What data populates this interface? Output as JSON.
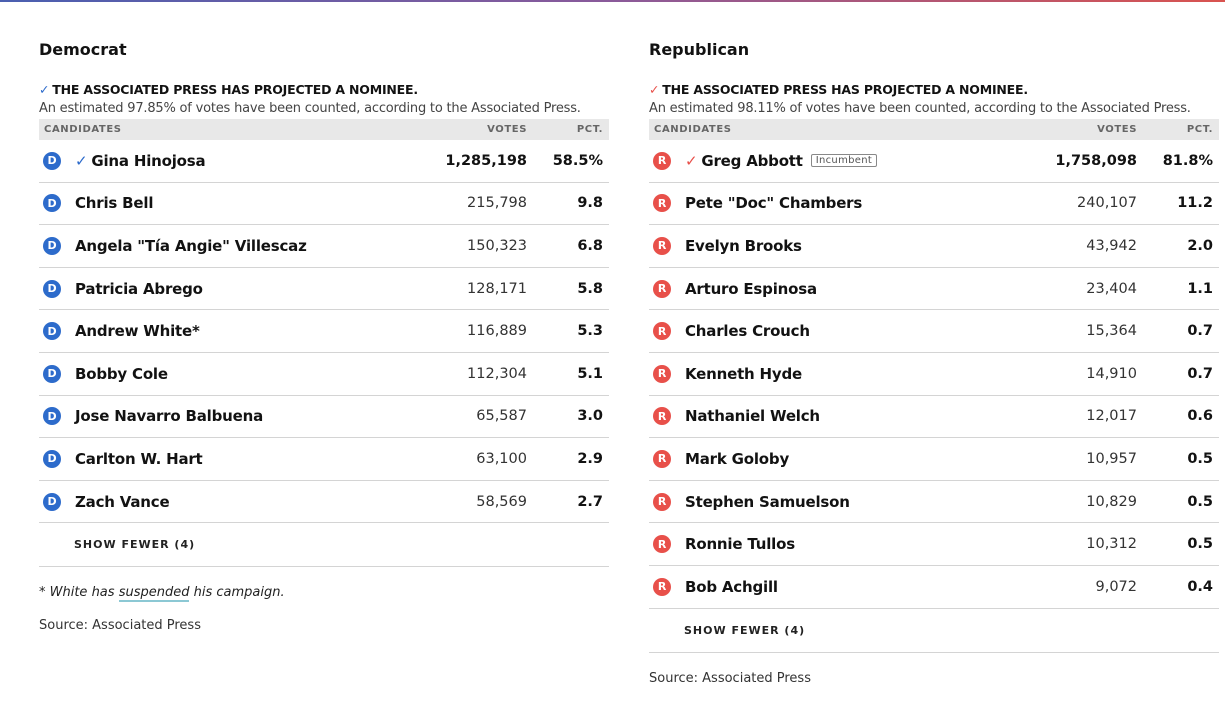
{
  "colors": {
    "democrat": "#2d6bcb",
    "republican": "#e8504a"
  },
  "democrat": {
    "party": "Democrat",
    "check": "✓",
    "projection": "THE ASSOCIATED PRESS HAS PROJECTED A NOMINEE.",
    "estimate": "An estimated 97.85% of votes have been counted, according to the Associated Press.",
    "headers": {
      "candidates": "CANDIDATES",
      "votes": "VOTES",
      "pct": "PCT."
    },
    "badge": "D",
    "rows": [
      {
        "name": "Gina Hinojosa",
        "votes": "1,285,198",
        "pct": "58.5%",
        "winner": true
      },
      {
        "name": "Chris Bell",
        "votes": "215,798",
        "pct": "9.8"
      },
      {
        "name": "Angela \"Tía Angie\" Villescaz",
        "votes": "150,323",
        "pct": "6.8"
      },
      {
        "name": "Patricia Abrego",
        "votes": "128,171",
        "pct": "5.8"
      },
      {
        "name": "Andrew White*",
        "votes": "116,889",
        "pct": "5.3"
      },
      {
        "name": "Bobby Cole",
        "votes": "112,304",
        "pct": "5.1"
      },
      {
        "name": "Jose Navarro Balbuena",
        "votes": "65,587",
        "pct": "3.0"
      },
      {
        "name": "Carlton W. Hart",
        "votes": "63,100",
        "pct": "2.9"
      },
      {
        "name": "Zach Vance",
        "votes": "58,569",
        "pct": "2.7"
      }
    ],
    "show_fewer": "SHOW FEWER (4)",
    "note": {
      "pre": "* White has ",
      "link": "suspended",
      "post": " his campaign."
    },
    "source": "Source: Associated Press"
  },
  "republican": {
    "party": "Republican",
    "check": "✓",
    "projection": "THE ASSOCIATED PRESS HAS PROJECTED A NOMINEE.",
    "estimate": "An estimated 98.11% of votes have been counted, according to the Associated Press.",
    "headers": {
      "candidates": "CANDIDATES",
      "votes": "VOTES",
      "pct": "PCT."
    },
    "badge": "R",
    "rows": [
      {
        "name": "Greg Abbott",
        "votes": "1,758,098",
        "pct": "81.8%",
        "winner": true,
        "tag": "Incumbent"
      },
      {
        "name": "Pete \"Doc\" Chambers",
        "votes": "240,107",
        "pct": "11.2"
      },
      {
        "name": "Evelyn Brooks",
        "votes": "43,942",
        "pct": "2.0"
      },
      {
        "name": "Arturo Espinosa",
        "votes": "23,404",
        "pct": "1.1"
      },
      {
        "name": "Charles Crouch",
        "votes": "15,364",
        "pct": "0.7"
      },
      {
        "name": "Kenneth Hyde",
        "votes": "14,910",
        "pct": "0.7"
      },
      {
        "name": "Nathaniel Welch",
        "votes": "12,017",
        "pct": "0.6"
      },
      {
        "name": "Mark Goloby",
        "votes": "10,957",
        "pct": "0.5"
      },
      {
        "name": "Stephen Samuelson",
        "votes": "10,829",
        "pct": "0.5"
      },
      {
        "name": "Ronnie Tullos",
        "votes": "10,312",
        "pct": "0.5"
      },
      {
        "name": "Bob Achgill",
        "votes": "9,072",
        "pct": "0.4"
      }
    ],
    "show_fewer": "SHOW FEWER (4)",
    "source": "Source: Associated Press"
  }
}
